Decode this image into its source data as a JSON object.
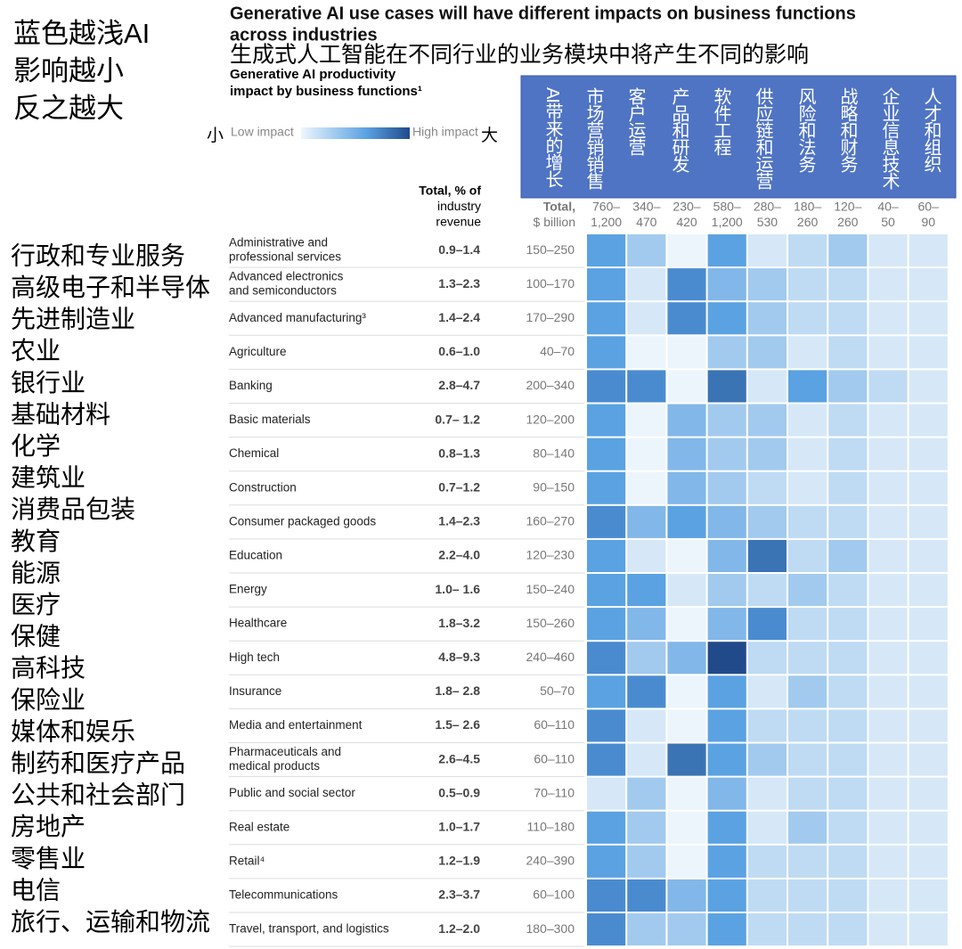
{
  "chart_data": {
    "type": "heatmap",
    "annotation": [
      "蓝色越浅AI",
      "影响越小",
      "反之越大"
    ],
    "title": [
      "Generative AI use cases will have different impacts on business functions",
      "across industries"
    ],
    "subtitle_zh": "生成式人工智能在不同行业的业务模块中将产生不同的影响",
    "subtitle": [
      "Generative AI productivity",
      "impact by business functions¹"
    ],
    "legend": {
      "low_zh": "小",
      "low": "Low impact",
      "high": "High impact",
      "high_zh": "大"
    },
    "column_headers_zh": [
      "AI带来的增长",
      "市场营销销售",
      "客户运营",
      "产品和研发",
      "软件工程",
      "供应链和运营",
      "风险和法务",
      "战略和财务",
      "企业信息技术",
      "人才和组织"
    ],
    "pct_header": [
      "Total, % of",
      "industry",
      "revenue"
    ],
    "billion_header": [
      "Total,",
      "$ billion"
    ],
    "function_totals": [
      [
        "760–",
        "1,200"
      ],
      [
        "340–",
        "470"
      ],
      [
        "230–",
        "420"
      ],
      [
        "580–",
        "1,200"
      ],
      [
        "280–",
        "530"
      ],
      [
        "180–",
        "260"
      ],
      [
        "120–",
        "260"
      ],
      [
        "40–",
        "50"
      ],
      [
        "60–",
        "90"
      ]
    ],
    "row_labels_zh": [
      "行政和专业服务",
      "高级电子和半导体",
      "先进制造业",
      "农业",
      "银行业",
      "基础材料",
      "化学",
      "建筑业",
      "消费品包装",
      "教育",
      "能源",
      " 医疗",
      "保健",
      "高科技",
      "保险业",
      "媒体和娱乐",
      "制药和医疗产品",
      "公共和社会部门",
      "房地产",
      "零售业",
      "电信",
      "旅行、运输和物流"
    ],
    "colorscale": [
      "#edf5fc",
      "#d6e8f7",
      "#bfdbf3",
      "#a2caee",
      "#82b7e9",
      "#5aa2e2",
      "#4a8bd0",
      "#3b74b4",
      "#214a8a"
    ],
    "rows": [
      {
        "name": [
          "Administrative and",
          "professional services"
        ],
        "pct": "0.9–1.4",
        "billion": "150–250",
        "values": [
          5,
          3,
          0,
          5,
          1,
          2,
          3,
          1,
          1
        ]
      },
      {
        "name": [
          "Advanced electronics",
          "and semiconductors"
        ],
        "pct": "1.3–2.3",
        "billion": "100–170",
        "values": [
          5,
          1,
          6,
          4,
          3,
          2,
          2,
          1,
          1
        ]
      },
      {
        "name": [
          "Advanced manufacturing³"
        ],
        "pct": "1.4–2.4",
        "billion": "170–290",
        "values": [
          5,
          1,
          6,
          5,
          3,
          2,
          2,
          1,
          1
        ]
      },
      {
        "name": [
          "Agriculture"
        ],
        "pct": "0.6–1.0",
        "billion": "40–70",
        "values": [
          5,
          0,
          0,
          3,
          3,
          1,
          2,
          1,
          1
        ]
      },
      {
        "name": [
          "Banking"
        ],
        "pct": "2.8–4.7",
        "billion": "200–340",
        "values": [
          6,
          6,
          0,
          7,
          1,
          5,
          3,
          2,
          1
        ]
      },
      {
        "name": [
          "Basic materials"
        ],
        "pct": "0.7– 1.2",
        "billion": "120–200",
        "values": [
          5,
          0,
          4,
          3,
          3,
          1,
          2,
          1,
          1
        ]
      },
      {
        "name": [
          "Chemical"
        ],
        "pct": "0.8–1.3",
        "billion": "80–140",
        "values": [
          5,
          0,
          4,
          3,
          3,
          1,
          2,
          1,
          1
        ]
      },
      {
        "name": [
          "Construction"
        ],
        "pct": "0.7–1.2",
        "billion": "90–150",
        "values": [
          5,
          0,
          4,
          3,
          2,
          1,
          2,
          1,
          1
        ]
      },
      {
        "name": [
          "Consumer packaged goods"
        ],
        "pct": "1.4–2.3",
        "billion": "160–270",
        "values": [
          6,
          4,
          5,
          4,
          3,
          2,
          2,
          1,
          1
        ]
      },
      {
        "name": [
          "Education"
        ],
        "pct": "2.2–4.0",
        "billion": "120–230",
        "values": [
          5,
          1,
          0,
          4,
          7,
          2,
          3,
          1,
          1
        ]
      },
      {
        "name": [
          "Energy"
        ],
        "pct": "1.0– 1.6",
        "billion": "150–240",
        "values": [
          5,
          5,
          1,
          3,
          2,
          3,
          2,
          1,
          1
        ]
      },
      {
        "name": [
          "Healthcare"
        ],
        "pct": "1.8–3.2",
        "billion": "150–260",
        "values": [
          5,
          4,
          0,
          4,
          6,
          2,
          2,
          1,
          1
        ]
      },
      {
        "name": [
          "High tech"
        ],
        "pct": "4.8–9.3",
        "billion": "240–460",
        "values": [
          6,
          3,
          4,
          8,
          2,
          2,
          2,
          1,
          1
        ]
      },
      {
        "name": [
          "Insurance"
        ],
        "pct": "1.8– 2.8",
        "billion": "50–70",
        "values": [
          5,
          6,
          0,
          5,
          1,
          3,
          2,
          1,
          1
        ]
      },
      {
        "name": [
          "Media and entertainment"
        ],
        "pct": "1.5– 2.6",
        "billion": "60–110",
        "values": [
          6,
          1,
          0,
          5,
          2,
          2,
          2,
          1,
          1
        ]
      },
      {
        "name": [
          "Pharmaceuticals and",
          "medical products"
        ],
        "pct": "2.6–4.5",
        "billion": "60–110",
        "values": [
          6,
          1,
          7,
          5,
          3,
          2,
          2,
          1,
          1
        ]
      },
      {
        "name": [
          "Public and social sector"
        ],
        "pct": "0.5–0.9",
        "billion": "70–110",
        "values": [
          1,
          3,
          0,
          4,
          1,
          2,
          2,
          1,
          1
        ]
      },
      {
        "name": [
          "Real estate"
        ],
        "pct": "1.0–1.7",
        "billion": "110–180",
        "values": [
          5,
          3,
          0,
          5,
          1,
          3,
          2,
          1,
          1
        ]
      },
      {
        "name": [
          "Retail⁴"
        ],
        "pct": "1.2–1.9",
        "billion": "240–390",
        "values": [
          5,
          3,
          0,
          5,
          2,
          2,
          2,
          1,
          1
        ]
      },
      {
        "name": [
          "Telecommunications"
        ],
        "pct": "2.3–3.7",
        "billion": "60–100",
        "values": [
          6,
          6,
          4,
          5,
          2,
          2,
          2,
          1,
          1
        ]
      },
      {
        "name": [
          "Travel, transport, and logistics"
        ],
        "pct": "1.2–2.0",
        "billion": "180–300",
        "values": [
          6,
          3,
          3,
          5,
          2,
          2,
          2,
          1,
          1
        ]
      }
    ]
  }
}
